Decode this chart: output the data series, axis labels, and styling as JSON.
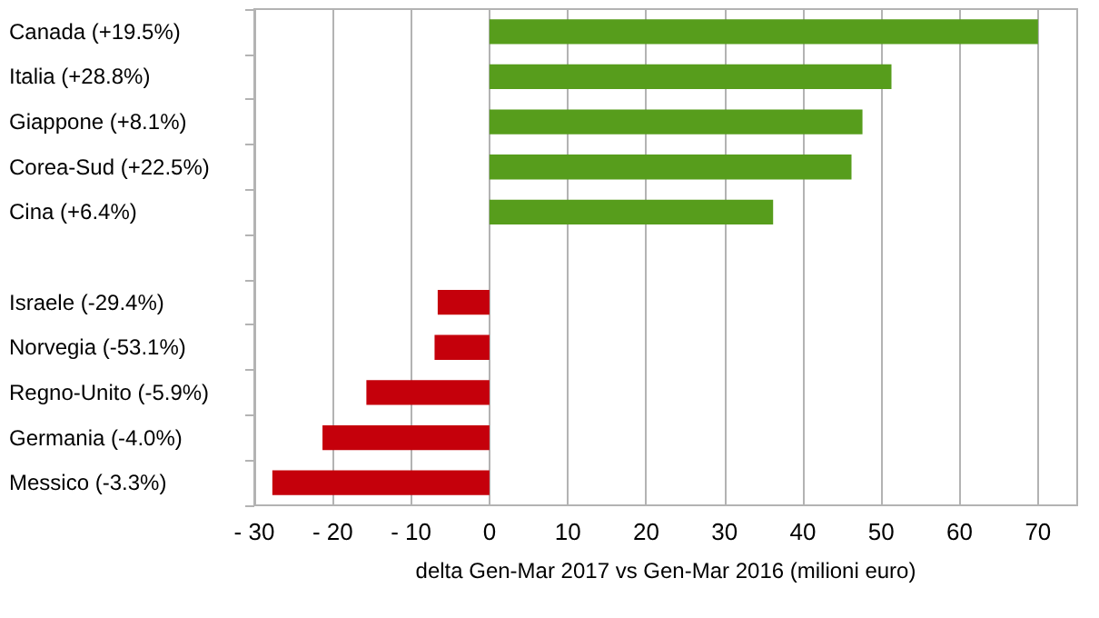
{
  "chart_data": {
    "type": "bar",
    "orientation": "horizontal",
    "xlabel": "delta Gen-Mar 2017 vs Gen-Mar 2016 (milioni euro)",
    "categories": [
      "Canada (+19.5%)",
      "Italia (+28.8%)",
      "Giappone (+8.1%)",
      "Corea-Sud (+22.5%)",
      "Cina (+6.4%)",
      null,
      "Israele (-29.4%)",
      "Norvegia (-53.1%)",
      "Regno-Unito (-5.9%)",
      "Germania (-4.0%)",
      "Messico (-3.3%)"
    ],
    "values": [
      70,
      51.3,
      47.6,
      46.2,
      36.2,
      null,
      -6.6,
      -7,
      -15.7,
      -21.3,
      -27.7
    ],
    "colors": [
      "#579d1c",
      "#579d1c",
      "#579d1c",
      "#579d1c",
      "#579d1c",
      null,
      "#c5000b",
      "#c5000b",
      "#c5000b",
      "#c5000b",
      "#c5000b"
    ],
    "xlim": [
      -30,
      75
    ],
    "xticks": [
      {
        "value": -30,
        "label": "- 30"
      },
      {
        "value": -20,
        "label": "- 20"
      },
      {
        "value": -10,
        "label": "- 10"
      },
      0,
      10,
      20,
      30,
      40,
      50,
      60,
      70
    ],
    "grid": "x"
  }
}
